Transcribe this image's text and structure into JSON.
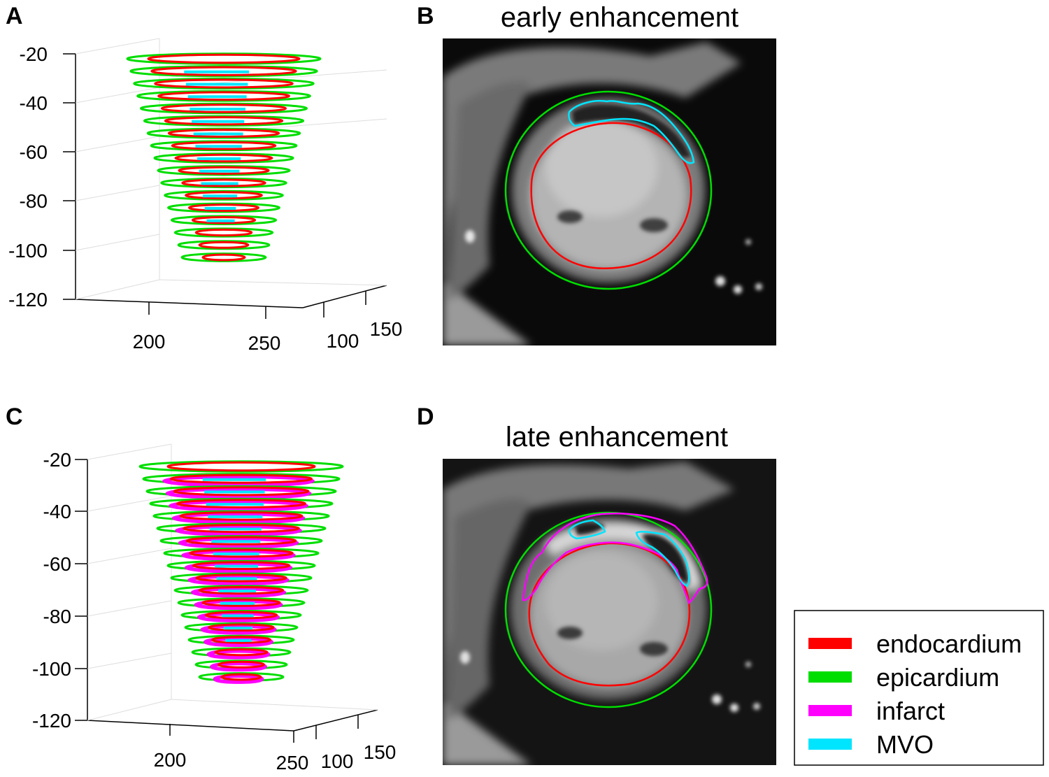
{
  "panels": {
    "A": {
      "label": "A"
    },
    "B": {
      "label": "B",
      "title": "early enhancement"
    },
    "C": {
      "label": "C"
    },
    "D": {
      "label": "D",
      "title": "late enhancement"
    }
  },
  "axis_ticks": {
    "z": [
      "-20",
      "-40",
      "-60",
      "-80",
      "-100",
      "-120"
    ],
    "x": [
      "200",
      "250"
    ],
    "y": [
      "100",
      "150"
    ]
  },
  "legend": {
    "items": [
      {
        "label": "endocardium",
        "color": "#ff0000"
      },
      {
        "label": "epicardium",
        "color": "#00dd00"
      },
      {
        "label": "infarct",
        "color": "#ff00ff"
      },
      {
        "label": "MVO",
        "color": "#00e5ff"
      }
    ]
  },
  "colors": {
    "endocardium": "#ff0000",
    "epicardium": "#00dd00",
    "infarct": "#ff00ff",
    "mvo": "#00e5ff"
  }
}
